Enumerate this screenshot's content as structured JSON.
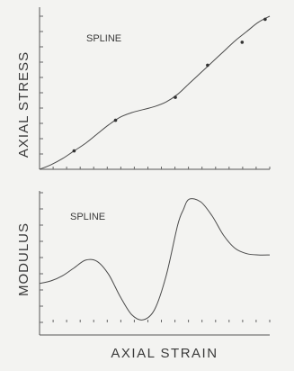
{
  "chart_data": [
    {
      "type": "line",
      "annotation": "SPLINE",
      "ylabel": "AXIAL  STRESS",
      "xlabel": "",
      "xlim": [
        0,
        1
      ],
      "ylim": [
        0,
        1
      ],
      "grid": false,
      "series": [
        {
          "curve": {
            "x": [
              0.0,
              0.05,
              0.1,
              0.15,
              0.2,
              0.25,
              0.3,
              0.35,
              0.4,
              0.45,
              0.5,
              0.55,
              0.6,
              0.65,
              0.7,
              0.75,
              0.8,
              0.85,
              0.9,
              0.95,
              1.0
            ],
            "y": [
              0.0,
              0.03,
              0.07,
              0.12,
              0.17,
              0.23,
              0.29,
              0.34,
              0.37,
              0.39,
              0.41,
              0.44,
              0.49,
              0.56,
              0.63,
              0.7,
              0.77,
              0.84,
              0.9,
              0.96,
              1.0
            ]
          },
          "points": {
            "x": [
              0.15,
              0.33,
              0.59,
              0.73,
              0.88,
              0.98
            ],
            "y": [
              0.12,
              0.32,
              0.47,
              0.68,
              0.83,
              0.98
            ]
          }
        }
      ]
    },
    {
      "type": "line",
      "annotation": "SPLINE",
      "ylabel": "MODULUS",
      "xlabel": "AXIAL  STRAIN",
      "xlim": [
        0,
        1
      ],
      "ylim": [
        0,
        1
      ],
      "grid": false,
      "series": [
        {
          "curve": {
            "x": [
              0.0,
              0.05,
              0.1,
              0.15,
              0.2,
              0.25,
              0.3,
              0.35,
              0.4,
              0.45,
              0.5,
              0.55,
              0.6,
              0.625,
              0.65,
              0.7,
              0.75,
              0.8,
              0.85,
              0.9,
              0.95,
              1.0
            ],
            "y": [
              0.3,
              0.32,
              0.36,
              0.42,
              0.48,
              0.47,
              0.37,
              0.2,
              0.06,
              0.02,
              0.1,
              0.36,
              0.75,
              0.87,
              0.95,
              0.93,
              0.82,
              0.67,
              0.57,
              0.53,
              0.52,
              0.52
            ]
          }
        }
      ]
    }
  ]
}
